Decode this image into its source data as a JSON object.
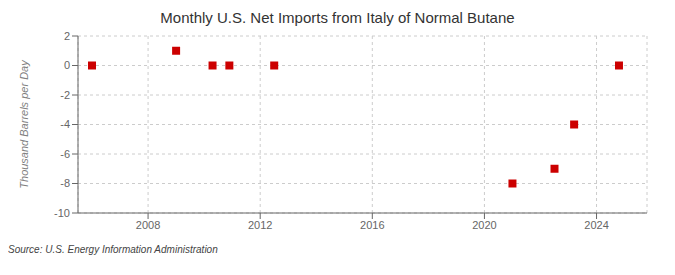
{
  "chart_data": {
    "type": "scatter",
    "title": "Monthly U.S. Net Imports from Italy of Normal Butane",
    "y_label": "Thousand Barrels per Day",
    "annotations": [
      "Source: U.S. Energy Information Administration"
    ],
    "x": [
      2006.0,
      2009.0,
      2010.3,
      2010.9,
      2012.5,
      2021.0,
      2022.5,
      2023.2,
      2024.8
    ],
    "values": [
      0.0,
      1.0,
      0.0,
      0.0,
      0.0,
      -8.0,
      -7.0,
      -4.0,
      0.0
    ],
    "color": "#cc0000",
    "marker": "square",
    "xlim": [
      2005.5,
      2025.8
    ],
    "ylim": [
      -10,
      2
    ],
    "xticks": [
      2008,
      2012,
      2016,
      2020,
      2024
    ],
    "yticks": [
      -10,
      -8,
      -6,
      -4,
      -2,
      0,
      2
    ],
    "grid": true
  }
}
